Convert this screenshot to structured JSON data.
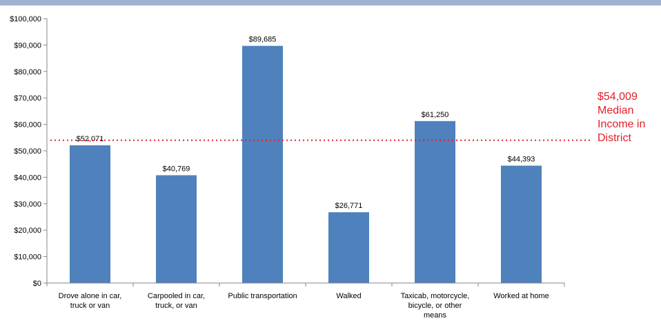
{
  "chart_data": {
    "type": "bar",
    "categories": [
      [
        "Drove alone in car,",
        "truck or van"
      ],
      [
        "Carpooled in car,",
        "truck, or van"
      ],
      [
        "Public transportation"
      ],
      [
        "Walked"
      ],
      [
        "Taxicab, motorcycle,",
        "bicycle, or other",
        "means"
      ],
      [
        "Worked at home"
      ]
    ],
    "values": [
      52071,
      40769,
      89685,
      26771,
      61250,
      44393
    ],
    "data_labels": [
      "$52,071",
      "$40,769",
      "$89,685",
      "$26,771",
      "$61,250",
      "$44,393"
    ],
    "ylim": [
      0,
      100000
    ],
    "yticks": [
      0,
      10000,
      20000,
      30000,
      40000,
      50000,
      60000,
      70000,
      80000,
      90000,
      100000
    ],
    "ytick_labels": [
      "$0",
      "$10,000",
      "$20,000",
      "$30,000",
      "$40,000",
      "$50,000",
      "$60,000",
      "$70,000",
      "$80,000",
      "$90,000",
      "$100,000"
    ],
    "bar_color": "#4f81bd",
    "grid": false,
    "reference_line": {
      "value": 54009,
      "label_lines": [
        "$54,009",
        "Median",
        "Income in",
        "District"
      ],
      "color": "#e0202a",
      "style": "dotted"
    }
  }
}
